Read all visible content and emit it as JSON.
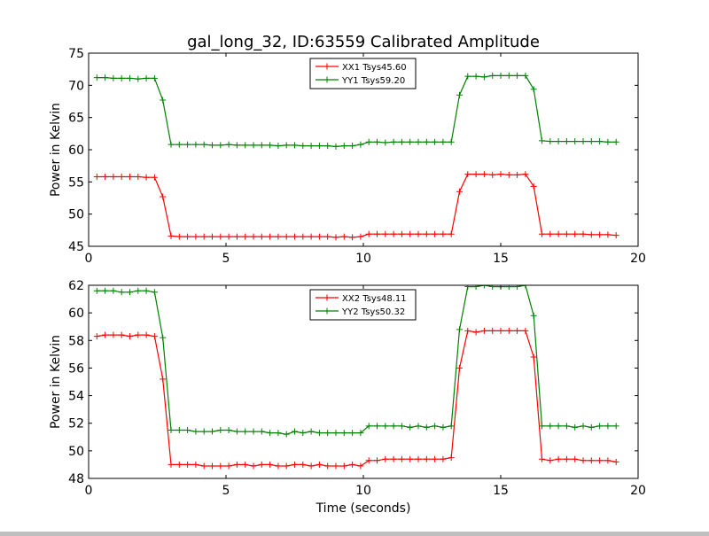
{
  "title": "gal_long_32, ID:63559 Calibrated Amplitude",
  "xlabel": "Time (seconds)",
  "colors": {
    "xx": "#ff0000",
    "yy": "#008000",
    "axes": "#000000",
    "background": "#ffffff"
  },
  "chart_data": [
    {
      "type": "line",
      "title": "gal_long_32, ID:63559 Calibrated Amplitude",
      "xlabel": "",
      "ylabel": "Power in Kelvin",
      "xlim": [
        0,
        20
      ],
      "ylim": [
        45,
        75
      ],
      "xticks": [
        0,
        5,
        10,
        15,
        20
      ],
      "yticks": [
        45,
        50,
        55,
        60,
        65,
        70,
        75
      ],
      "grid": false,
      "legend_position": "top-center",
      "x": [
        0.3,
        0.6,
        0.9,
        1.2,
        1.5,
        1.8,
        2.1,
        2.4,
        2.7,
        3.0,
        3.3,
        3.6,
        3.9,
        4.2,
        4.5,
        4.8,
        5.1,
        5.4,
        5.7,
        6.0,
        6.3,
        6.6,
        6.9,
        7.2,
        7.5,
        7.8,
        8.1,
        8.4,
        8.7,
        9.0,
        9.3,
        9.6,
        9.9,
        10.2,
        10.5,
        10.8,
        11.1,
        11.4,
        11.7,
        12.0,
        12.3,
        12.6,
        12.9,
        13.2,
        13.5,
        13.8,
        14.1,
        14.4,
        14.7,
        15.0,
        15.3,
        15.6,
        15.9,
        16.2,
        16.5,
        16.8,
        17.1,
        17.4,
        17.7,
        18.0,
        18.3,
        18.6,
        18.9,
        19.2
      ],
      "series": [
        {
          "name": "XX1 Tsys45.60",
          "color": "#ff0000",
          "values": [
            55.8,
            55.8,
            55.8,
            55.8,
            55.8,
            55.8,
            55.7,
            55.7,
            52.7,
            46.6,
            46.5,
            46.5,
            46.5,
            46.5,
            46.5,
            46.5,
            46.5,
            46.5,
            46.5,
            46.5,
            46.5,
            46.5,
            46.5,
            46.5,
            46.5,
            46.5,
            46.5,
            46.5,
            46.5,
            46.4,
            46.5,
            46.4,
            46.5,
            46.9,
            46.9,
            46.9,
            46.9,
            46.9,
            46.9,
            46.9,
            46.9,
            46.9,
            46.9,
            46.9,
            53.5,
            56.2,
            56.2,
            56.2,
            56.1,
            56.2,
            56.1,
            56.1,
            56.2,
            54.3,
            46.9,
            46.9,
            46.9,
            46.9,
            46.9,
            46.9,
            46.8,
            46.8,
            46.8,
            46.7
          ]
        },
        {
          "name": "YY1 Tsys59.20",
          "color": "#008000",
          "values": [
            71.2,
            71.2,
            71.1,
            71.1,
            71.1,
            71.0,
            71.1,
            71.1,
            67.7,
            60.8,
            60.8,
            60.8,
            60.8,
            60.8,
            60.7,
            60.7,
            60.8,
            60.7,
            60.7,
            60.7,
            60.7,
            60.7,
            60.6,
            60.7,
            60.7,
            60.6,
            60.6,
            60.6,
            60.6,
            60.5,
            60.6,
            60.6,
            60.8,
            61.2,
            61.2,
            61.1,
            61.2,
            61.2,
            61.2,
            61.2,
            61.2,
            61.2,
            61.2,
            61.2,
            68.5,
            71.4,
            71.4,
            71.3,
            71.5,
            71.5,
            71.5,
            71.5,
            71.5,
            69.4,
            61.4,
            61.3,
            61.3,
            61.3,
            61.3,
            61.3,
            61.3,
            61.3,
            61.2,
            61.2
          ]
        }
      ]
    },
    {
      "type": "line",
      "title": "",
      "xlabel": "Time (seconds)",
      "ylabel": "Power in Kelvin",
      "xlim": [
        0,
        20
      ],
      "ylim": [
        48,
        62
      ],
      "xticks": [
        0,
        5,
        10,
        15,
        20
      ],
      "yticks": [
        48,
        50,
        52,
        54,
        56,
        58,
        60,
        62
      ],
      "grid": false,
      "legend_position": "top-center",
      "x": [
        0.3,
        0.6,
        0.9,
        1.2,
        1.5,
        1.8,
        2.1,
        2.4,
        2.7,
        3.0,
        3.3,
        3.6,
        3.9,
        4.2,
        4.5,
        4.8,
        5.1,
        5.4,
        5.7,
        6.0,
        6.3,
        6.6,
        6.9,
        7.2,
        7.5,
        7.8,
        8.1,
        8.4,
        8.7,
        9.0,
        9.3,
        9.6,
        9.9,
        10.2,
        10.5,
        10.8,
        11.1,
        11.4,
        11.7,
        12.0,
        12.3,
        12.6,
        12.9,
        13.2,
        13.5,
        13.8,
        14.1,
        14.4,
        14.7,
        15.0,
        15.3,
        15.6,
        15.9,
        16.2,
        16.5,
        16.8,
        17.1,
        17.4,
        17.7,
        18.0,
        18.3,
        18.6,
        18.9,
        19.2
      ],
      "series": [
        {
          "name": "XX2 Tsys48.11",
          "color": "#ff0000",
          "values": [
            58.3,
            58.4,
            58.4,
            58.4,
            58.3,
            58.4,
            58.4,
            58.3,
            55.2,
            49.0,
            49.0,
            49.0,
            49.0,
            48.9,
            48.9,
            48.9,
            48.9,
            49.0,
            49.0,
            48.9,
            49.0,
            49.0,
            48.9,
            48.9,
            49.0,
            49.0,
            48.9,
            49.0,
            48.9,
            48.9,
            48.9,
            49.0,
            48.9,
            49.3,
            49.3,
            49.4,
            49.4,
            49.4,
            49.4,
            49.4,
            49.4,
            49.4,
            49.4,
            49.5,
            56.0,
            58.7,
            58.6,
            58.7,
            58.7,
            58.7,
            58.7,
            58.7,
            58.7,
            56.8,
            49.4,
            49.3,
            49.4,
            49.4,
            49.4,
            49.3,
            49.3,
            49.3,
            49.3,
            49.2
          ]
        },
        {
          "name": "YY2 Tsys50.32",
          "color": "#008000",
          "values": [
            61.6,
            61.6,
            61.6,
            61.5,
            61.5,
            61.6,
            61.6,
            61.5,
            58.2,
            51.5,
            51.5,
            51.5,
            51.4,
            51.4,
            51.4,
            51.5,
            51.5,
            51.4,
            51.4,
            51.4,
            51.4,
            51.3,
            51.3,
            51.2,
            51.4,
            51.3,
            51.4,
            51.3,
            51.3,
            51.3,
            51.3,
            51.3,
            51.3,
            51.8,
            51.8,
            51.8,
            51.8,
            51.8,
            51.7,
            51.8,
            51.7,
            51.8,
            51.7,
            51.8,
            58.8,
            61.9,
            61.9,
            62.0,
            61.9,
            61.9,
            61.9,
            61.9,
            62.0,
            59.8,
            51.8,
            51.8,
            51.8,
            51.8,
            51.7,
            51.8,
            51.7,
            51.8,
            51.8,
            51.8
          ]
        }
      ]
    }
  ]
}
